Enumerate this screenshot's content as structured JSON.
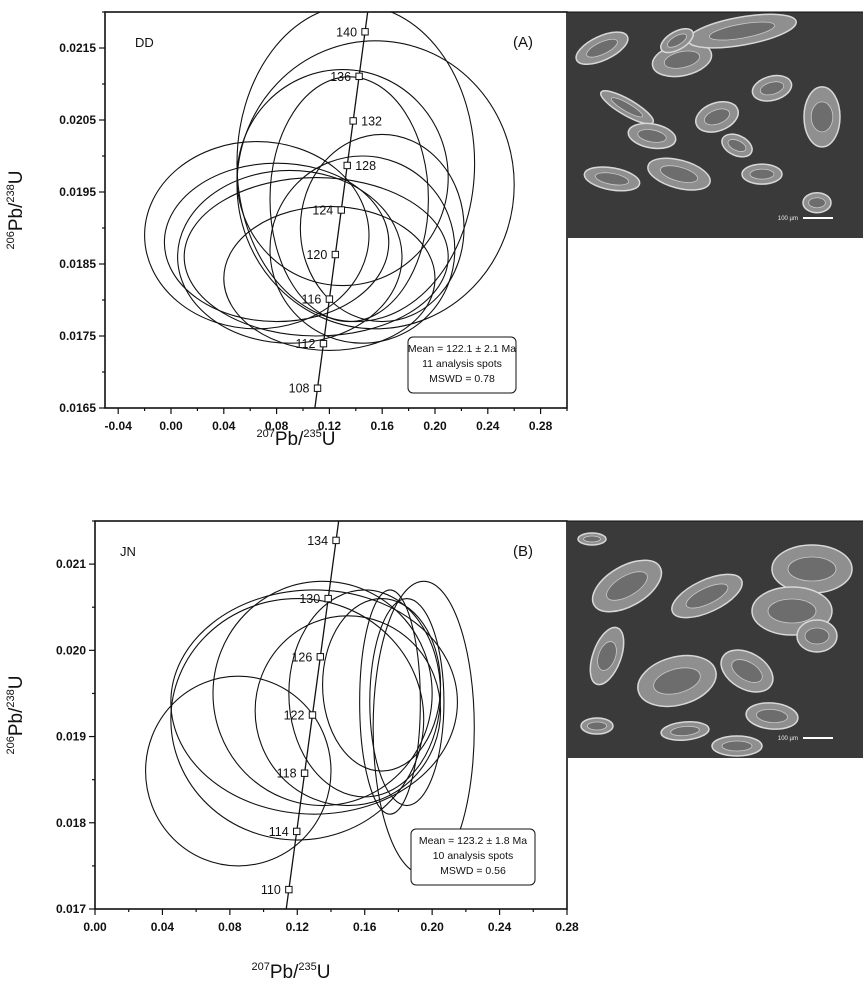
{
  "chart_data": [
    {
      "type": "scatter",
      "kind": "U-Pb concordia diagram with error ellipses",
      "panel_label": "(A)",
      "sample": "DD",
      "xlabel_parts": {
        "mass": "207",
        "el": "Pb/",
        "mass2": "235",
        "el2": "U"
      },
      "ylabel_parts": {
        "mass": "206",
        "el": "Pb/",
        "mass2": "238",
        "el2": "U"
      },
      "xlim": [
        -0.05,
        0.3
      ],
      "ylim": [
        0.0165,
        0.022
      ],
      "xticks": [
        "-0.04",
        "0.00",
        "0.04",
        "0.08",
        "0.12",
        "0.16",
        "0.20",
        "0.24",
        "0.28"
      ],
      "xtick_values": [
        -0.04,
        0.0,
        0.04,
        0.08,
        0.12,
        0.16,
        0.2,
        0.24,
        0.28
      ],
      "yticks": [
        "0.0165",
        "0.0175",
        "0.0185",
        "0.0195",
        "0.0205",
        "0.0215"
      ],
      "ytick_values": [
        0.0165,
        0.0175,
        0.0185,
        0.0195,
        0.0205,
        0.0215
      ],
      "concordia_ages": [
        "108",
        "112",
        "116",
        "120",
        "124",
        "128",
        "132",
        "136",
        "140"
      ],
      "concordia_x_range": [
        0.111,
        0.147
      ],
      "ellipses": [
        {
          "cx": 0.155,
          "cy": 0.0196,
          "rx": 0.105,
          "ry": 0.002
        },
        {
          "cx": 0.14,
          "cy": 0.0199,
          "rx": 0.09,
          "ry": 0.0022
        },
        {
          "cx": 0.13,
          "cy": 0.0197,
          "rx": 0.08,
          "ry": 0.0015
        },
        {
          "cx": 0.135,
          "cy": 0.0194,
          "rx": 0.06,
          "ry": 0.0017
        },
        {
          "cx": 0.065,
          "cy": 0.0189,
          "rx": 0.085,
          "ry": 0.0013
        },
        {
          "cx": 0.08,
          "cy": 0.0188,
          "rx": 0.085,
          "ry": 0.0011
        },
        {
          "cx": 0.09,
          "cy": 0.0186,
          "rx": 0.085,
          "ry": 0.0012
        },
        {
          "cx": 0.11,
          "cy": 0.0186,
          "rx": 0.1,
          "ry": 0.0011
        },
        {
          "cx": 0.12,
          "cy": 0.0183,
          "rx": 0.08,
          "ry": 0.001
        },
        {
          "cx": 0.145,
          "cy": 0.0187,
          "rx": 0.07,
          "ry": 0.0013
        },
        {
          "cx": 0.16,
          "cy": 0.019,
          "rx": 0.062,
          "ry": 0.0013
        }
      ],
      "stats": [
        "Mean = 122.1 ± 2.1 Ma",
        "11 analysis spots",
        "MSWD = 0.78"
      ],
      "micrograph_scale": "100 µm"
    },
    {
      "type": "scatter",
      "kind": "U-Pb concordia diagram with error ellipses",
      "panel_label": "(B)",
      "sample": "JN",
      "xlabel_parts": {
        "mass": "207",
        "el": "Pb/",
        "mass2": "235",
        "el2": "U"
      },
      "ylabel_parts": {
        "mass": "206",
        "el": "Pb/",
        "mass2": "238",
        "el2": "U"
      },
      "xlim": [
        0.0,
        0.28
      ],
      "ylim": [
        0.017,
        0.0215
      ],
      "xticks": [
        "0.00",
        "0.04",
        "0.08",
        "0.12",
        "0.16",
        "0.20",
        "0.24",
        "0.28"
      ],
      "xtick_values": [
        0.0,
        0.04,
        0.08,
        0.12,
        0.16,
        0.2,
        0.24,
        0.28
      ],
      "yticks": [
        "0.017",
        "0.018",
        "0.019",
        "0.020",
        "0.021"
      ],
      "ytick_values": [
        0.017,
        0.018,
        0.019,
        0.02,
        0.021
      ],
      "concordia_ages": [
        "110",
        "114",
        "118",
        "122",
        "126",
        "130",
        "134"
      ],
      "concordia_x_range": [
        0.115,
        0.143
      ],
      "ellipses": [
        {
          "cx": 0.13,
          "cy": 0.0194,
          "rx": 0.085,
          "ry": 0.0013
        },
        {
          "cx": 0.12,
          "cy": 0.0192,
          "rx": 0.075,
          "ry": 0.0014
        },
        {
          "cx": 0.135,
          "cy": 0.0195,
          "rx": 0.065,
          "ry": 0.0013
        },
        {
          "cx": 0.15,
          "cy": 0.0193,
          "rx": 0.055,
          "ry": 0.0011
        },
        {
          "cx": 0.16,
          "cy": 0.0195,
          "rx": 0.045,
          "ry": 0.0012
        },
        {
          "cx": 0.17,
          "cy": 0.0196,
          "rx": 0.035,
          "ry": 0.001
        },
        {
          "cx": 0.175,
          "cy": 0.0194,
          "rx": 0.018,
          "ry": 0.0013
        },
        {
          "cx": 0.185,
          "cy": 0.0194,
          "rx": 0.022,
          "ry": 0.0012
        },
        {
          "cx": 0.195,
          "cy": 0.0191,
          "rx": 0.03,
          "ry": 0.0017
        },
        {
          "cx": 0.085,
          "cy": 0.0186,
          "rx": 0.055,
          "ry": 0.0011
        }
      ],
      "stats": [
        "Mean = 123.2 ± 1.8 Ma",
        "10 analysis spots",
        "MSWD = 0.56"
      ],
      "micrograph_scale": "100 µm"
    }
  ]
}
